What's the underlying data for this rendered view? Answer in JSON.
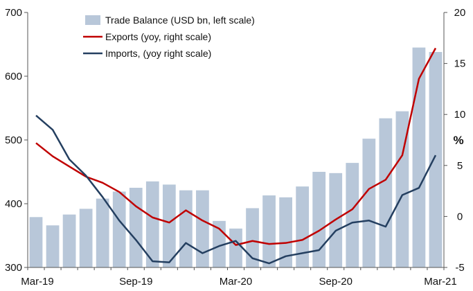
{
  "chart_data": {
    "type": "bar",
    "categories": [
      "Mar-19",
      "Apr-19",
      "May-19",
      "Jun-19",
      "Jul-19",
      "Aug-19",
      "Sep-19",
      "Oct-19",
      "Nov-19",
      "Dec-19",
      "Jan-20",
      "Feb-20",
      "Mar-20",
      "Apr-20",
      "May-20",
      "Jun-20",
      "Jul-20",
      "Aug-20",
      "Sep-20",
      "Oct-20",
      "Nov-20",
      "Dec-20",
      "Jan-21",
      "Feb-21",
      "Mar-21"
    ],
    "x_tick_labels": [
      "Mar-19",
      "Sep-19",
      "Mar-20",
      "Sep-20",
      "Mar-21"
    ],
    "left_axis": {
      "ylim": [
        300,
        700
      ],
      "ticks": [
        "300",
        "400",
        "500",
        "600",
        "700"
      ]
    },
    "right_axis": {
      "ylim": [
        -5,
        20
      ],
      "ticks": [
        "-5",
        "0",
        "5",
        "10",
        "15",
        "20"
      ],
      "label": "%"
    },
    "series": [
      {
        "name": "Trade Balance (USD bn, left scale)",
        "type": "bar",
        "axis": "left",
        "color": "#b8c7d9",
        "values": [
          379,
          366,
          383,
          392,
          408,
          419,
          425,
          435,
          430,
          421,
          421,
          373,
          361,
          393,
          413,
          410,
          427,
          450,
          448,
          464,
          502,
          534,
          545,
          645,
          638
        ]
      },
      {
        "name": "Exports (yoy, right scale)",
        "type": "line",
        "axis": "right",
        "color": "#c00000",
        "values": [
          7.2,
          5.9,
          4.9,
          3.9,
          3.3,
          2.4,
          1.0,
          -0.1,
          -0.6,
          0.6,
          -0.4,
          -1.2,
          -2.8,
          -2.4,
          -2.7,
          -2.6,
          -2.3,
          -1.4,
          -0.3,
          0.7,
          2.7,
          3.6,
          6.0,
          13.5,
          16.5
        ]
      },
      {
        "name": "Imports, (yoy right scale)",
        "type": "line",
        "axis": "right",
        "color": "#243f60",
        "values": [
          9.9,
          8.5,
          5.6,
          4.0,
          1.9,
          -0.4,
          -2.3,
          -4.4,
          -4.5,
          -2.6,
          -3.6,
          -2.9,
          -2.4,
          -4.1,
          -4.6,
          -3.9,
          -3.6,
          -3.3,
          -1.4,
          -0.6,
          -0.4,
          -1.0,
          2.1,
          2.8,
          6.0
        ]
      }
    ],
    "legend_position": "top-center",
    "grid": false
  }
}
